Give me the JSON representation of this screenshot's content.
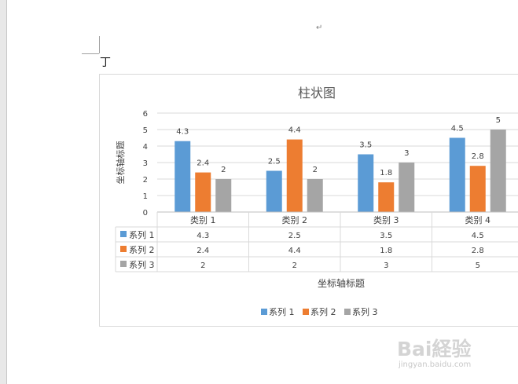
{
  "doc": {
    "paragraph_mark": "↵",
    "text_glyph": "丁"
  },
  "chart_data": {
    "type": "bar",
    "title": "柱状图",
    "xlabel": "坐标轴标题",
    "ylabel": "坐标轴标题",
    "ylim": [
      0,
      6
    ],
    "yticks": [
      0,
      1,
      2,
      3,
      4,
      5,
      6
    ],
    "grid": true,
    "legend_position": "bottom",
    "data_table": true,
    "categories": [
      "类别 1",
      "类别 2",
      "类别 3",
      "类别 4"
    ],
    "series": [
      {
        "name": "系列 1",
        "color": "#5B9BD5",
        "values": [
          4.3,
          2.5,
          3.5,
          4.5
        ]
      },
      {
        "name": "系列 2",
        "color": "#ED7D31",
        "values": [
          2.4,
          4.4,
          1.8,
          2.8
        ]
      },
      {
        "name": "系列 3",
        "color": "#A5A5A5",
        "values": [
          2,
          2,
          3,
          5
        ]
      }
    ]
  },
  "watermark": {
    "logo": "Bai経验",
    "url": "jingyan.baidu.com"
  }
}
